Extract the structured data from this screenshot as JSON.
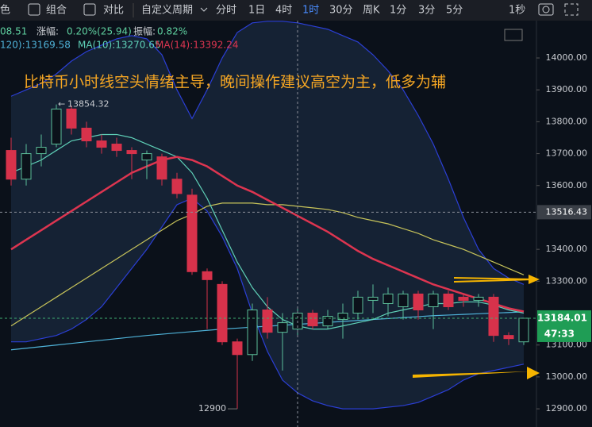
{
  "toolbar": {
    "items": [
      "色",
      "组合",
      "对比",
      "自定义周期",
      "分时",
      "1日",
      "4时",
      "1时",
      "30分",
      "周K",
      "1分",
      "3分",
      "5分",
      "1秒"
    ]
  },
  "info": {
    "line1": [
      "08.51",
      "涨幅:",
      "0.20%(25.94)",
      "振幅:",
      "0.82%"
    ],
    "line2": [
      "120):13169.58",
      "MA(10):13270.65",
      "MA(14):13392.24"
    ]
  },
  "chart_data": {
    "type": "candlestick",
    "annotation": "比特币小时线空头情绪主导，晚间操作建议高空为主，低多为辅",
    "up_color": "#5cbf9a",
    "down_color": "#d7324b",
    "open": [
      13710,
      13620,
      13700,
      13730,
      13840,
      13780,
      13740,
      13730,
      13710,
      13680,
      13690,
      13620,
      13570,
      13330,
      13290,
      13110,
      13070,
      13210,
      13140,
      13150,
      13200,
      13160,
      13180,
      13200,
      13240,
      13230,
      13220,
      13260,
      13220,
      13260,
      13250,
      13240,
      13250,
      13130,
      13110
    ],
    "high": [
      13750,
      13730,
      13760,
      13854.32,
      13850,
      13800,
      13760,
      13750,
      13720,
      13710,
      13700,
      13640,
      13590,
      13340,
      13300,
      13120,
      13230,
      13250,
      13200,
      13220,
      13210,
      13210,
      13230,
      13270,
      13290,
      13280,
      13270,
      13270,
      13270,
      13270,
      13260,
      13260,
      13260,
      13140,
      13185
    ],
    "low": [
      13600,
      13600,
      13660,
      13720,
      13760,
      13720,
      13700,
      13690,
      13620,
      13620,
      13600,
      13560,
      13320,
      13150,
      13100,
      12900,
      13050,
      13120,
      13020,
      13130,
      13150,
      13150,
      13120,
      13180,
      13200,
      13190,
      13180,
      13180,
      13150,
      13210,
      13220,
      13220,
      13110,
      13100,
      13100
    ],
    "close": [
      13620,
      13700,
      13720,
      13840,
      13780,
      13740,
      13720,
      13710,
      13700,
      13700,
      13620,
      13575,
      13330,
      13305,
      13110,
      13070,
      13210,
      13140,
      13170,
      13200,
      13160,
      13190,
      13200,
      13250,
      13250,
      13260,
      13260,
      13210,
      13260,
      13220,
      13240,
      13250,
      13130,
      13120,
      13184.01
    ],
    "lines": [
      {
        "color": "#2b3fd6",
        "values": [
          13880,
          13900,
          13920,
          13950,
          13990,
          14020,
          14040,
          14060,
          14070,
          14060,
          14010,
          13900,
          13810,
          13900,
          14000,
          14080,
          14110,
          14115,
          14115,
          14110,
          14100,
          14090,
          14070,
          14050,
          14010,
          13960,
          13900,
          13820,
          13730,
          13620,
          13500,
          13400,
          13340,
          13310,
          13290
        ]
      },
      {
        "color": "#2b3fd6",
        "values": [
          13110,
          13110,
          13120,
          13130,
          13150,
          13180,
          13220,
          13280,
          13340,
          13400,
          13470,
          13540,
          13560,
          13520,
          13440,
          13340,
          13200,
          13080,
          12990,
          12950,
          12925,
          12910,
          12900,
          12900,
          12900,
          12905,
          12910,
          12920,
          12940,
          12960,
          12990,
          13010,
          13020,
          13030,
          13040
        ]
      },
      {
        "color": "#c8c45a",
        "values": [
          13160,
          13190,
          13220,
          13250,
          13280,
          13310,
          13340,
          13370,
          13400,
          13430,
          13460,
          13490,
          13510,
          13535,
          13545,
          13545,
          13545,
          13540,
          13540,
          13535,
          13530,
          13525,
          13515,
          13500,
          13490,
          13480,
          13465,
          13450,
          13430,
          13415,
          13400,
          13380,
          13360,
          13340,
          13320
        ]
      },
      {
        "color": "#4fb3d9",
        "values": [
          13085,
          13090,
          13095,
          13100,
          13105,
          13110,
          13115,
          13120,
          13125,
          13130,
          13134,
          13138,
          13142,
          13146,
          13150,
          13153,
          13156,
          13159,
          13162,
          13165,
          13168,
          13171,
          13174,
          13177,
          13180,
          13183,
          13186,
          13189,
          13192,
          13194,
          13196,
          13198,
          13200,
          13202,
          13204
        ]
      },
      {
        "color": "#5fd1b8",
        "values": [
          13640,
          13660,
          13680,
          13710,
          13740,
          13750,
          13760,
          13760,
          13750,
          13730,
          13710,
          13690,
          13640,
          13560,
          13460,
          13360,
          13280,
          13220,
          13180,
          13160,
          13150,
          13150,
          13160,
          13170,
          13180,
          13200,
          13210,
          13220,
          13230,
          13230,
          13235,
          13235,
          13225,
          13210,
          13200
        ]
      },
      {
        "color": "#dd3550",
        "values": [
          13400,
          13430,
          13460,
          13490,
          13520,
          13550,
          13580,
          13610,
          13640,
          13660,
          13680,
          13690,
          13680,
          13660,
          13630,
          13600,
          13580,
          13555,
          13530,
          13505,
          13480,
          13455,
          13425,
          13395,
          13370,
          13350,
          13330,
          13310,
          13290,
          13275,
          13260,
          13245,
          13230,
          13215,
          13205
        ]
      }
    ],
    "max_label": 13854.32,
    "min_label": 12900,
    "ref_price": 13516.43,
    "last_price": 13184.01,
    "countdown": "47:33",
    "ylim": [
      12843,
      14117
    ],
    "yticks": [
      {
        "value": 12900,
        "label": "12900.00"
      },
      {
        "value": 13000,
        "label": "13000.00"
      },
      {
        "value": 13100,
        "label": "13100.00"
      },
      {
        "value": 13300,
        "label": "13300.00"
      },
      {
        "value": 13400,
        "label": "13400.00"
      },
      {
        "value": 13600,
        "label": "13600.00"
      },
      {
        "value": 13700,
        "label": "13700.00"
      },
      {
        "value": 13800,
        "label": "13800.00"
      },
      {
        "value": 13900,
        "label": "13900.00"
      },
      {
        "value": 14000,
        "label": "14000.00"
      }
    ]
  }
}
